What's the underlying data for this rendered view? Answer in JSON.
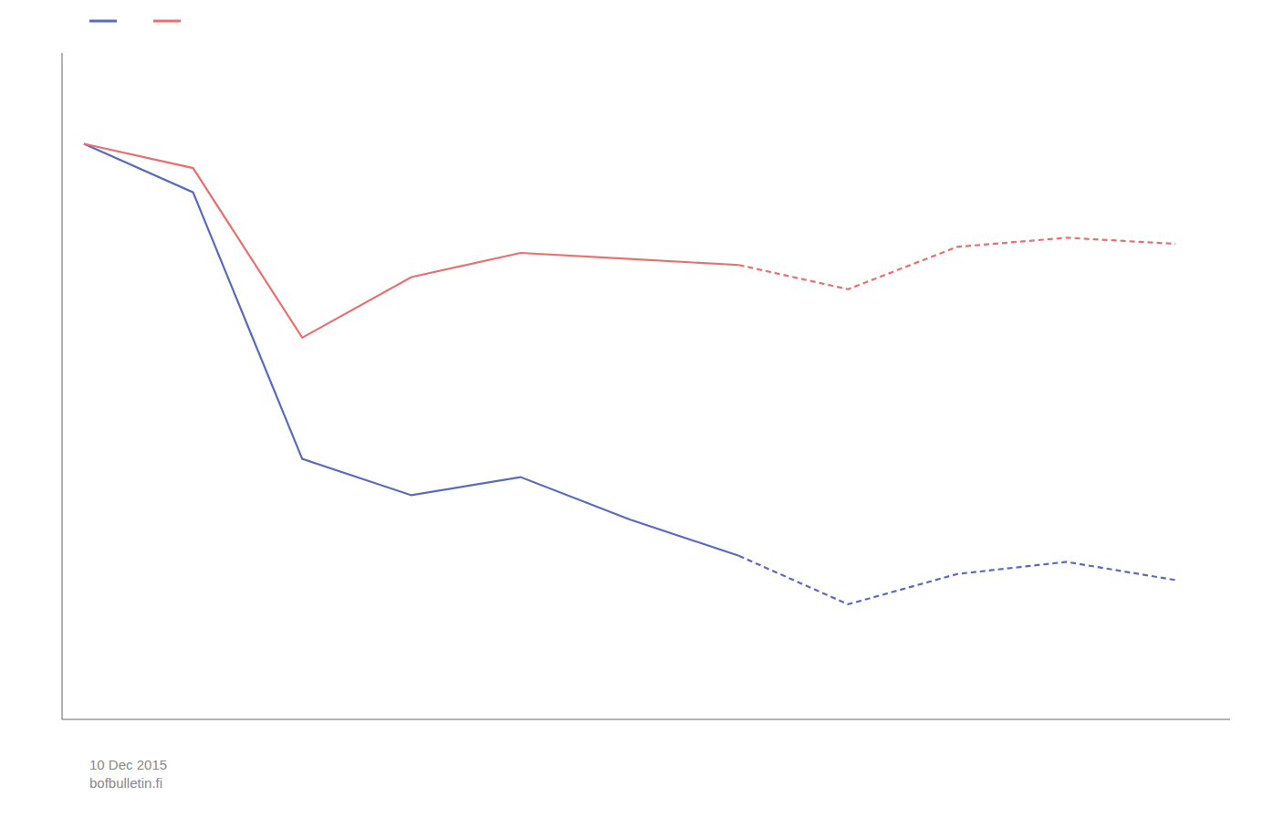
{
  "chart_data": {
    "type": "line",
    "series": [
      {
        "color": "#5a6abf",
        "line_style": "solid",
        "x": [
          2007,
          2008,
          2009,
          2010,
          2011,
          2012,
          2013
        ],
        "values": [
          0.0,
          -0.8,
          -5.2,
          -5.8,
          -5.5,
          -6.2,
          -6.8
        ]
      },
      {
        "color": "#5a6abf",
        "line_style": "dashed",
        "x": [
          2013,
          2014,
          2015,
          2016,
          2017
        ],
        "values": [
          -6.8,
          -7.6,
          -7.1,
          -6.9,
          -7.2
        ]
      },
      {
        "color": "#e87070",
        "line_style": "solid",
        "x": [
          2007,
          2008,
          2009,
          2010,
          2011,
          2012,
          2013
        ],
        "values": [
          0.0,
          -0.4,
          -3.2,
          -2.2,
          -1.8,
          -1.9,
          -2.0
        ]
      },
      {
        "color": "#e87070",
        "line_style": "dashed",
        "x": [
          2013,
          2014,
          2015,
          2016,
          2017
        ],
        "values": [
          -2.0,
          -2.4,
          -1.7,
          -1.55,
          -1.65
        ]
      }
    ],
    "xlim": [
      2006.8,
      2017.5
    ],
    "ylim": [
      -9.5,
      1.5
    ],
    "tick_labels": false,
    "grid": false,
    "legend": "upper left",
    "annotations": [
      "10 Dec 2015",
      "bofbulletin.fi"
    ]
  }
}
